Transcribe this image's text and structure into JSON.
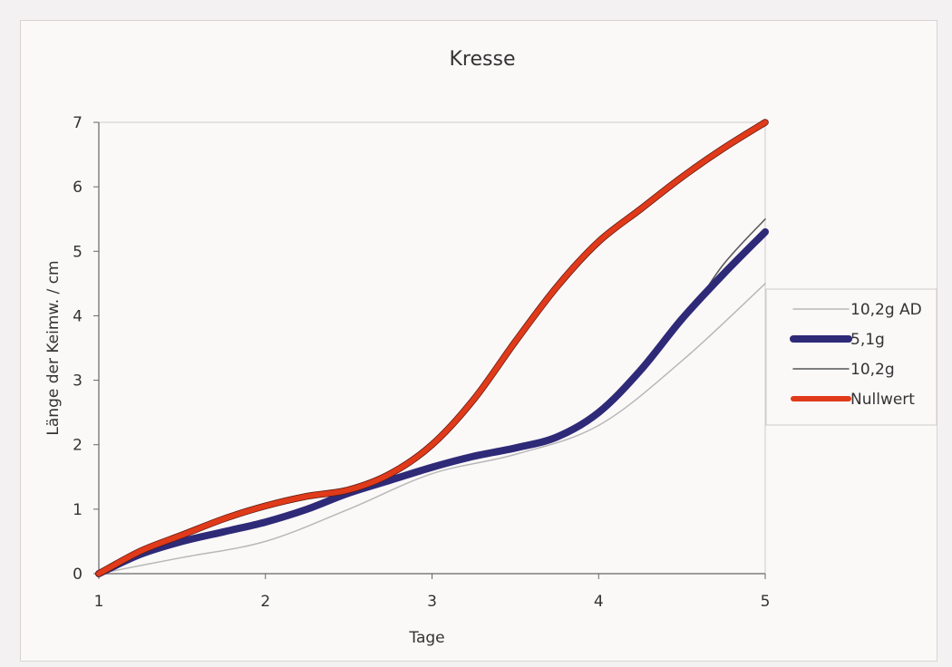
{
  "chart_data": {
    "type": "line",
    "title": "Kresse",
    "xlabel": "Tage",
    "ylabel": "Länge der Keimw. / cm",
    "xlim": [
      1,
      5
    ],
    "ylim": [
      0,
      7
    ],
    "xticks": [
      "1",
      "2",
      "3",
      "4",
      "5"
    ],
    "yticks": [
      "0",
      "1",
      "2",
      "3",
      "4",
      "5",
      "6",
      "7"
    ],
    "grid": false,
    "legend_position": "right",
    "series": [
      {
        "name": "10,2g AD",
        "color": "#b8b8b8",
        "x": [
          1,
          1.5,
          2,
          2.5,
          3,
          3.5,
          4,
          4.5,
          5
        ],
        "y": [
          0,
          0.25,
          0.5,
          1.0,
          1.55,
          1.85,
          2.3,
          3.3,
          4.5
        ]
      },
      {
        "name": "5,1g",
        "color": "#2e2a78",
        "x": [
          1,
          1.25,
          1.5,
          1.75,
          2,
          2.25,
          2.5,
          2.75,
          3,
          3.25,
          3.5,
          3.75,
          4,
          4.25,
          4.5,
          4.75,
          5
        ],
        "y": [
          0,
          0.3,
          0.5,
          0.65,
          0.8,
          1.0,
          1.25,
          1.45,
          1.65,
          1.82,
          1.95,
          2.12,
          2.5,
          3.15,
          3.95,
          4.65,
          5.3
        ]
      },
      {
        "name": "10,2g",
        "color": "#555555",
        "x": [
          1,
          1.5,
          2,
          2.5,
          3,
          3.25,
          3.5,
          3.75,
          4,
          4.5,
          4.75,
          5
        ],
        "y": [
          0,
          0.5,
          0.8,
          1.25,
          1.65,
          1.8,
          1.95,
          2.1,
          2.5,
          3.9,
          4.8,
          5.5
        ]
      },
      {
        "name": "Nullwert",
        "color": "#e03a1a",
        "x": [
          1,
          1.25,
          1.5,
          1.75,
          2,
          2.25,
          2.5,
          2.75,
          3,
          3.25,
          3.5,
          3.75,
          4,
          4.25,
          4.5,
          4.75,
          5
        ],
        "y": [
          0,
          0.35,
          0.6,
          0.85,
          1.05,
          1.2,
          1.3,
          1.55,
          2.0,
          2.7,
          3.6,
          4.45,
          5.15,
          5.65,
          6.15,
          6.6,
          7.0
        ]
      }
    ]
  }
}
